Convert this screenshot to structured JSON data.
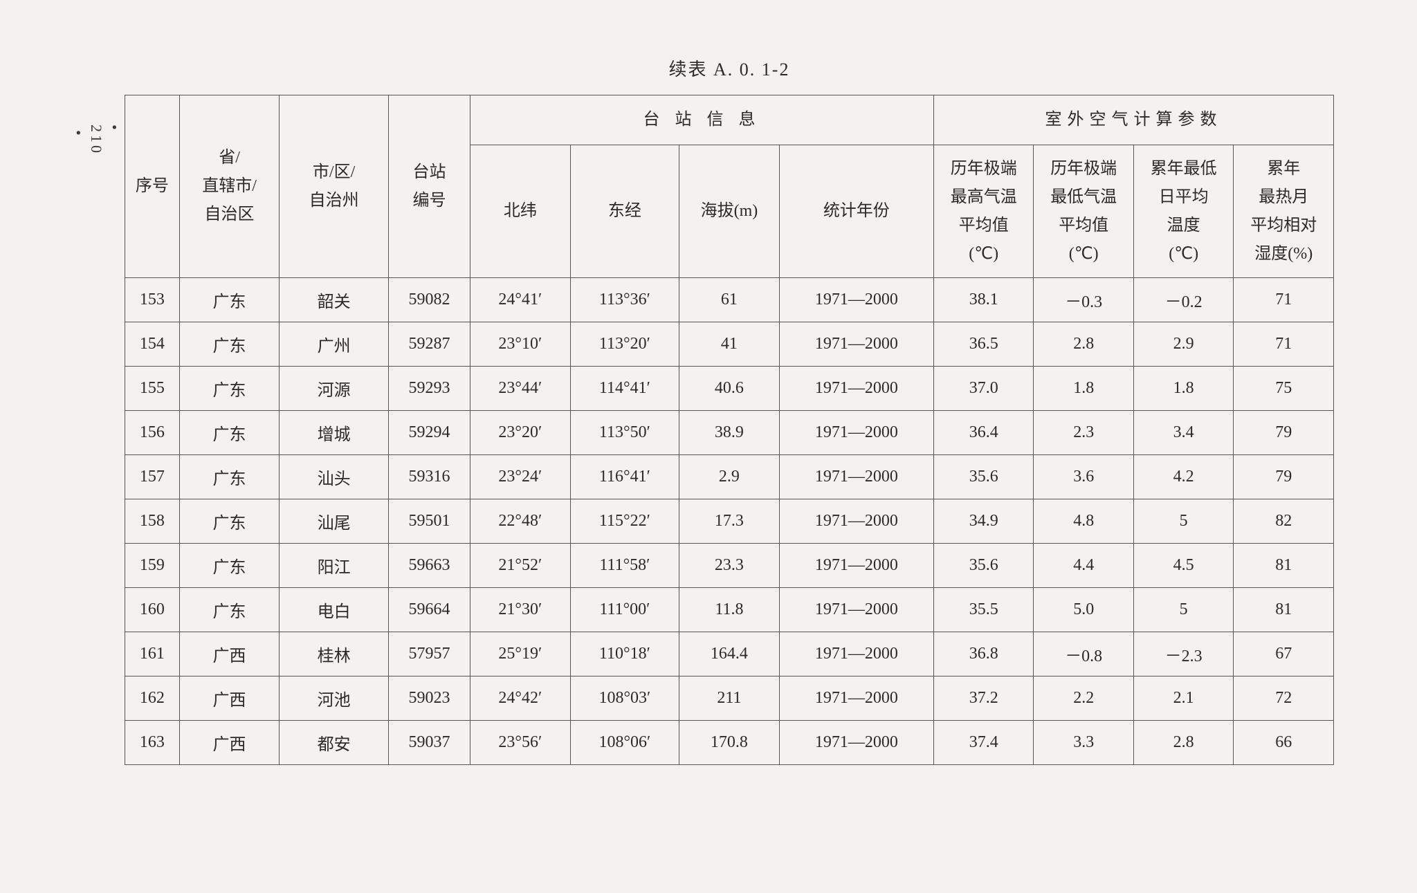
{
  "page_number": "210",
  "title": "续表 A. 0. 1-2",
  "headers": {
    "seq": "序号",
    "province": "省/\n直辖市/\n自治区",
    "city": "市/区/\n自治州",
    "station_no": "台站\n编号",
    "group_station": "台 站 信 息",
    "group_params": "室外空气计算参数",
    "lat": "北纬",
    "lon": "东经",
    "alt": "海拔(m)",
    "year": "统计年份",
    "max_temp": "历年极端\n最高气温\n平均值\n(℃)",
    "min_temp": "历年极端\n最低气温\n平均值\n(℃)",
    "low_daily": "累年最低\n日平均\n温度\n(℃)",
    "humidity": "累年\n最热月\n平均相对\n湿度(%)"
  },
  "rows": [
    {
      "seq": "153",
      "prov": "广东",
      "city": "韶关",
      "station": "59082",
      "lat": "24°41′",
      "lon": "113°36′",
      "alt": "61",
      "year": "1971—2000",
      "max": "38.1",
      "min": "－0.3",
      "low": "－0.2",
      "hum": "71"
    },
    {
      "seq": "154",
      "prov": "广东",
      "city": "广州",
      "station": "59287",
      "lat": "23°10′",
      "lon": "113°20′",
      "alt": "41",
      "year": "1971—2000",
      "max": "36.5",
      "min": "2.8",
      "low": "2.9",
      "hum": "71"
    },
    {
      "seq": "155",
      "prov": "广东",
      "city": "河源",
      "station": "59293",
      "lat": "23°44′",
      "lon": "114°41′",
      "alt": "40.6",
      "year": "1971—2000",
      "max": "37.0",
      "min": "1.8",
      "low": "1.8",
      "hum": "75"
    },
    {
      "seq": "156",
      "prov": "广东",
      "city": "增城",
      "station": "59294",
      "lat": "23°20′",
      "lon": "113°50′",
      "alt": "38.9",
      "year": "1971—2000",
      "max": "36.4",
      "min": "2.3",
      "low": "3.4",
      "hum": "79"
    },
    {
      "seq": "157",
      "prov": "广东",
      "city": "汕头",
      "station": "59316",
      "lat": "23°24′",
      "lon": "116°41′",
      "alt": "2.9",
      "year": "1971—2000",
      "max": "35.6",
      "min": "3.6",
      "low": "4.2",
      "hum": "79"
    },
    {
      "seq": "158",
      "prov": "广东",
      "city": "汕尾",
      "station": "59501",
      "lat": "22°48′",
      "lon": "115°22′",
      "alt": "17.3",
      "year": "1971—2000",
      "max": "34.9",
      "min": "4.8",
      "low": "5",
      "hum": "82"
    },
    {
      "seq": "159",
      "prov": "广东",
      "city": "阳江",
      "station": "59663",
      "lat": "21°52′",
      "lon": "111°58′",
      "alt": "23.3",
      "year": "1971—2000",
      "max": "35.6",
      "min": "4.4",
      "low": "4.5",
      "hum": "81"
    },
    {
      "seq": "160",
      "prov": "广东",
      "city": "电白",
      "station": "59664",
      "lat": "21°30′",
      "lon": "111°00′",
      "alt": "11.8",
      "year": "1971—2000",
      "max": "35.5",
      "min": "5.0",
      "low": "5",
      "hum": "81"
    },
    {
      "seq": "161",
      "prov": "广西",
      "city": "桂林",
      "station": "57957",
      "lat": "25°19′",
      "lon": "110°18′",
      "alt": "164.4",
      "year": "1971—2000",
      "max": "36.8",
      "min": "－0.8",
      "low": "－2.3",
      "hum": "67"
    },
    {
      "seq": "162",
      "prov": "广西",
      "city": "河池",
      "station": "59023",
      "lat": "24°42′",
      "lon": "108°03′",
      "alt": "211",
      "year": "1971—2000",
      "max": "37.2",
      "min": "2.2",
      "low": "2.1",
      "hum": "72"
    },
    {
      "seq": "163",
      "prov": "广西",
      "city": "都安",
      "station": "59037",
      "lat": "23°56′",
      "lon": "108°06′",
      "alt": "170.8",
      "year": "1971—2000",
      "max": "37.4",
      "min": "3.3",
      "low": "2.8",
      "hum": "66"
    }
  ],
  "style": {
    "background_color": "#f4f2ee",
    "border_color": "#555555",
    "text_color": "#2a2a2a",
    "font_family": "SimSun",
    "title_fontsize": 26,
    "cell_fontsize": 24
  }
}
